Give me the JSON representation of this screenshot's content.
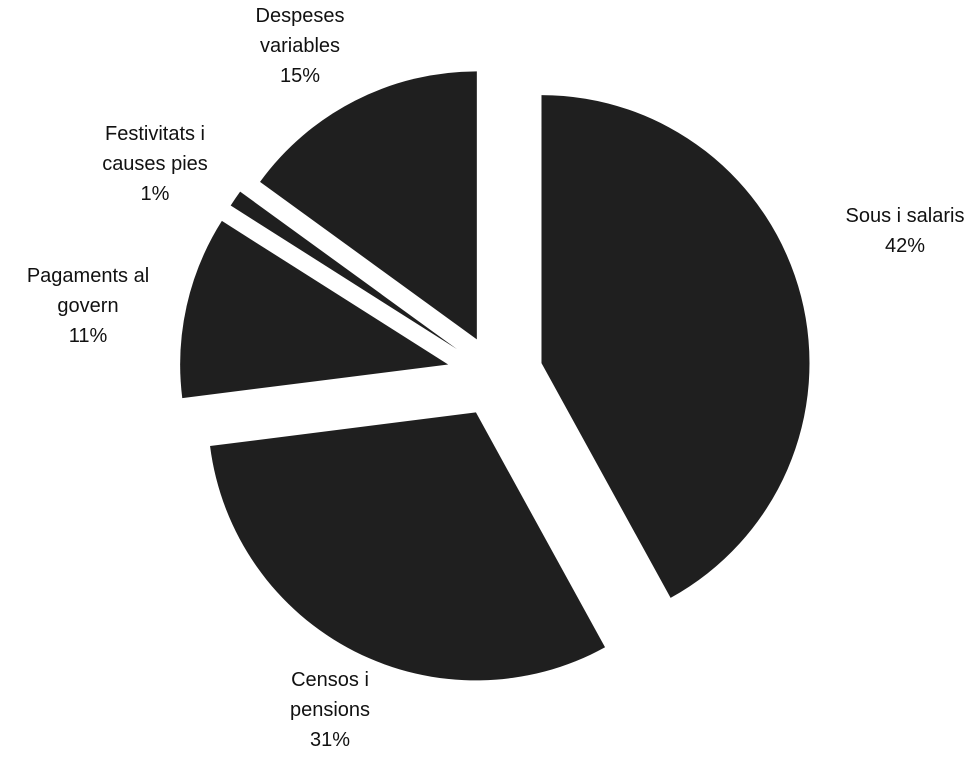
{
  "chart_data": {
    "type": "pie",
    "title": "",
    "slice_color": "#1f1f1f",
    "slices": [
      {
        "label_lines": [
          "Sous i salaris"
        ],
        "value": 42,
        "value_label": "42%"
      },
      {
        "label_lines": [
          "Censos i",
          "pensions"
        ],
        "value": 31,
        "value_label": "31%"
      },
      {
        "label_lines": [
          "Pagaments al",
          "govern"
        ],
        "value": 11,
        "value_label": "11%"
      },
      {
        "label_lines": [
          "Festivitats i",
          "causes pies"
        ],
        "value": 1,
        "value_label": "1%"
      },
      {
        "label_lines": [
          "Despeses",
          "variables"
        ],
        "value": 15,
        "value_label": "15%"
      }
    ]
  }
}
